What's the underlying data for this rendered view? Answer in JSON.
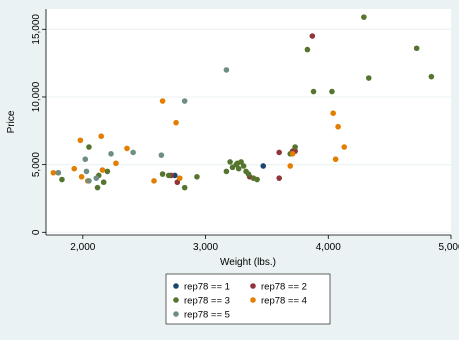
{
  "chart_data": {
    "type": "scatter",
    "xlabel": "Weight (lbs.)",
    "ylabel": "Price",
    "xlim": [
      1700,
      5000
    ],
    "ylim": [
      -200,
      16500
    ],
    "xticks": [
      {
        "value": 2000,
        "label": "2,000"
      },
      {
        "value": 3000,
        "label": "3,000"
      },
      {
        "value": 4000,
        "label": "4,000"
      },
      {
        "value": 5000,
        "label": "5,000"
      }
    ],
    "yticks": [
      {
        "value": 0,
        "label": "0"
      },
      {
        "value": 5000,
        "label": "5,000"
      },
      {
        "value": 10000,
        "label": "10,000"
      },
      {
        "value": 15000,
        "label": "15,000"
      }
    ],
    "grid": "horizontal",
    "legend_placement": "bottom",
    "series": [
      {
        "name": "rep78 == 1",
        "color": "#1a476f",
        "points": [
          [
            2750,
            4200
          ],
          [
            3470,
            4900
          ]
        ]
      },
      {
        "name": "rep78 == 2",
        "color": "#90353b",
        "points": [
          [
            2720,
            4200
          ],
          [
            2770,
            3700
          ],
          [
            3360,
            4100
          ],
          [
            3600,
            4000
          ],
          [
            3600,
            5900
          ],
          [
            3710,
            6000
          ],
          [
            3870,
            14500
          ],
          [
            3730,
            6000
          ]
        ]
      },
      {
        "name": "rep78 == 3",
        "color": "#55752f",
        "points": [
          [
            1800,
            4400
          ],
          [
            1830,
            3900
          ],
          [
            2050,
            6300
          ],
          [
            2120,
            3300
          ],
          [
            2130,
            4200
          ],
          [
            2170,
            3700
          ],
          [
            2200,
            4500
          ],
          [
            2650,
            4300
          ],
          [
            2700,
            4200
          ],
          [
            2830,
            3300
          ],
          [
            2930,
            4100
          ],
          [
            3170,
            4500
          ],
          [
            3200,
            5200
          ],
          [
            3220,
            4800
          ],
          [
            3260,
            5100
          ],
          [
            3270,
            4700
          ],
          [
            3290,
            5200
          ],
          [
            3310,
            4900
          ],
          [
            3330,
            4500
          ],
          [
            3350,
            4300
          ],
          [
            3390,
            4000
          ],
          [
            3420,
            3900
          ],
          [
            3690,
            5800
          ],
          [
            3730,
            6300
          ],
          [
            3830,
            13500
          ],
          [
            3880,
            10400
          ],
          [
            4030,
            10400
          ],
          [
            4290,
            15900
          ],
          [
            4330,
            11400
          ],
          [
            4720,
            13600
          ],
          [
            4840,
            11500
          ],
          [
            3250,
            5000
          ]
        ]
      },
      {
        "name": "rep78 == 4",
        "color": "#e37e00",
        "points": [
          [
            1760,
            4400
          ],
          [
            1930,
            4700
          ],
          [
            1980,
            6800
          ],
          [
            1990,
            4100
          ],
          [
            2040,
            3800
          ],
          [
            2150,
            7100
          ],
          [
            2160,
            4600
          ],
          [
            2270,
            5100
          ],
          [
            2360,
            6200
          ],
          [
            2580,
            3800
          ],
          [
            2650,
            9700
          ],
          [
            2760,
            8100
          ],
          [
            2790,
            4000
          ],
          [
            3690,
            4900
          ],
          [
            3710,
            5800
          ],
          [
            4040,
            8800
          ],
          [
            4060,
            5400
          ],
          [
            4080,
            7800
          ],
          [
            4130,
            6300
          ]
        ]
      },
      {
        "name": "rep78 == 5",
        "color": "#6e8e84",
        "points": [
          [
            1800,
            4400
          ],
          [
            2020,
            5400
          ],
          [
            2030,
            4500
          ],
          [
            2050,
            3800
          ],
          [
            2110,
            4000
          ],
          [
            2230,
            5800
          ],
          [
            2410,
            5900
          ],
          [
            2640,
            5700
          ],
          [
            2830,
            9700
          ],
          [
            3170,
            12000
          ]
        ]
      }
    ]
  }
}
